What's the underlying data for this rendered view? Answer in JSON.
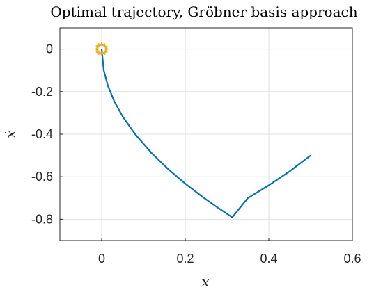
{
  "chart_data": {
    "type": "line",
    "title": "Optimal trajectory, Gröbner basis approach",
    "xlabel": "x",
    "ylabel": "ẋ",
    "xlim": [
      -0.1,
      0.6
    ],
    "ylim": [
      -0.9,
      0.1
    ],
    "xticks": [
      0,
      0.2,
      0.4,
      0.6
    ],
    "yticks": [
      0,
      -0.2,
      -0.4,
      -0.6,
      -0.8
    ],
    "xtick_labels": [
      "0",
      "0.2",
      "0.4",
      "0.6"
    ],
    "ytick_labels": [
      "0",
      "-0.2",
      "-0.4",
      "-0.6",
      "-0.8"
    ],
    "grid": true,
    "series": [
      {
        "color": "#0072BD",
        "x": [
          0.5,
          0.45,
          0.4,
          0.35,
          0.3125,
          0.28,
          0.24,
          0.2,
          0.16,
          0.12,
          0.08,
          0.05,
          0.03,
          0.015,
          0.005,
          0.0
        ],
        "y": [
          -0.5,
          -0.5745,
          -0.6403,
          -0.7,
          -0.7906,
          -0.7483,
          -0.6928,
          -0.6325,
          -0.5657,
          -0.4899,
          -0.4,
          -0.3162,
          -0.2449,
          -0.1732,
          -0.1,
          0.0
        ]
      }
    ],
    "markers": [
      {
        "x": 0,
        "y": 0,
        "shape": "circle",
        "color": "#EDB120"
      }
    ]
  }
}
